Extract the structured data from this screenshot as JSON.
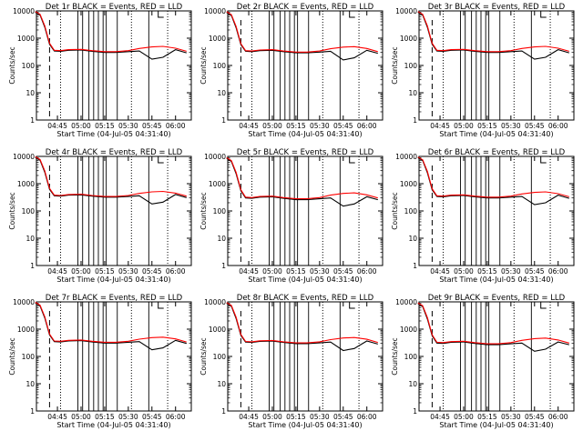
{
  "colors": {
    "background": "#ffffff",
    "events": "#000000",
    "lld": "#ff0000"
  },
  "chart_data": [
    {
      "type": "line",
      "title": "Det 1r BLACK = Events, RED = LLD",
      "xlabel": "Start Time (04-Jul-05 04:31:40)",
      "ylabel": "Counts/sec",
      "yscale": "log",
      "ylim": [
        1,
        10000
      ],
      "x_ticks": [
        "04:45",
        "05:00",
        "05:15",
        "05:30",
        "05:45",
        "06:00"
      ],
      "y_ticks": [
        "1",
        "10",
        "100",
        "1000",
        "10000"
      ],
      "x": [
        "04:31",
        "04:34",
        "04:37",
        "04:40",
        "04:43",
        "04:47",
        "04:52",
        "05:00",
        "05:07",
        "05:15",
        "05:22",
        "05:30",
        "05:37",
        "05:45",
        "05:52",
        "06:00",
        "06:07"
      ],
      "series": [
        {
          "name": "Events",
          "values": [
            9000,
            7000,
            2500,
            600,
            340,
            330,
            360,
            370,
            330,
            300,
            300,
            320,
            340,
            170,
            200,
            380,
            290
          ]
        },
        {
          "name": "LLD",
          "values": [
            9500,
            7500,
            2800,
            650,
            360,
            350,
            380,
            390,
            350,
            320,
            320,
            350,
            420,
            480,
            500,
            430,
            330
          ]
        }
      ]
    },
    {
      "type": "line",
      "title": "Det 2r BLACK = Events, RED = LLD",
      "xlabel": "Start Time (04-Jul-05 04:31:40)",
      "ylabel": "Counts/sec",
      "yscale": "log",
      "ylim": [
        1,
        10000
      ],
      "x_ticks": [
        "04:45",
        "05:00",
        "05:15",
        "05:30",
        "05:45",
        "06:00"
      ],
      "y_ticks": [
        "1",
        "10",
        "100",
        "1000",
        "10000"
      ],
      "x": [
        "04:31",
        "04:34",
        "04:37",
        "04:40",
        "04:43",
        "04:47",
        "04:52",
        "05:00",
        "05:07",
        "05:15",
        "05:22",
        "05:30",
        "05:37",
        "05:45",
        "05:52",
        "06:00",
        "06:07"
      ],
      "series": [
        {
          "name": "Events",
          "values": [
            8800,
            6800,
            2400,
            580,
            330,
            320,
            350,
            360,
            320,
            290,
            290,
            310,
            330,
            160,
            190,
            360,
            280
          ]
        },
        {
          "name": "LLD",
          "values": [
            9300,
            7300,
            2700,
            630,
            350,
            340,
            370,
            380,
            340,
            310,
            310,
            340,
            410,
            470,
            490,
            420,
            320
          ]
        }
      ]
    },
    {
      "type": "line",
      "title": "Det 3r BLACK = Events, RED = LLD",
      "xlabel": "Start Time (04-Jul-05 04:31:40)",
      "ylabel": "Counts/sec",
      "yscale": "log",
      "ylim": [
        1,
        10000
      ],
      "x_ticks": [
        "04:45",
        "05:00",
        "05:15",
        "05:30",
        "05:45",
        "06:00"
      ],
      "y_ticks": [
        "1",
        "10",
        "100",
        "1000",
        "10000"
      ],
      "x": [
        "04:31",
        "04:34",
        "04:37",
        "04:40",
        "04:43",
        "04:47",
        "04:52",
        "05:00",
        "05:07",
        "05:15",
        "05:22",
        "05:30",
        "05:37",
        "05:45",
        "05:52",
        "06:00",
        "06:07"
      ],
      "series": [
        {
          "name": "Events",
          "values": [
            9000,
            7000,
            2500,
            600,
            340,
            330,
            360,
            370,
            330,
            300,
            300,
            320,
            340,
            170,
            200,
            380,
            290
          ]
        },
        {
          "name": "LLD",
          "values": [
            9500,
            7500,
            2800,
            650,
            360,
            350,
            380,
            390,
            350,
            320,
            320,
            350,
            420,
            480,
            500,
            430,
            330
          ]
        }
      ]
    },
    {
      "type": "line",
      "title": "Det 4r BLACK = Events, RED = LLD",
      "xlabel": "Start Time (04-Jul-05 04:31:40)",
      "ylabel": "Counts/sec",
      "yscale": "log",
      "ylim": [
        1,
        10000
      ],
      "x_ticks": [
        "04:45",
        "05:00",
        "05:15",
        "05:30",
        "05:45",
        "06:00"
      ],
      "y_ticks": [
        "1",
        "10",
        "100",
        "1000",
        "10000"
      ],
      "x": [
        "04:31",
        "04:34",
        "04:37",
        "04:40",
        "04:43",
        "04:47",
        "04:52",
        "05:00",
        "05:07",
        "05:15",
        "05:22",
        "05:30",
        "05:37",
        "05:45",
        "05:52",
        "06:00",
        "06:07"
      ],
      "series": [
        {
          "name": "Events",
          "values": [
            9200,
            7200,
            2600,
            620,
            360,
            350,
            380,
            390,
            350,
            320,
            320,
            340,
            360,
            180,
            210,
            400,
            310
          ]
        },
        {
          "name": "LLD",
          "values": [
            9700,
            7700,
            2900,
            670,
            380,
            370,
            400,
            410,
            370,
            340,
            340,
            370,
            440,
            500,
            520,
            450,
            350
          ]
        }
      ]
    },
    {
      "type": "line",
      "title": "Det 5r BLACK = Events, RED = LLD",
      "xlabel": "Start Time (04-Jul-05 04:31:40)",
      "ylabel": "Counts/sec",
      "yscale": "log",
      "ylim": [
        1,
        10000
      ],
      "x_ticks": [
        "04:45",
        "05:00",
        "05:15",
        "05:30",
        "05:45",
        "06:00"
      ],
      "y_ticks": [
        "1",
        "10",
        "100",
        "1000",
        "10000"
      ],
      "x": [
        "04:31",
        "04:34",
        "04:37",
        "04:40",
        "04:43",
        "04:47",
        "04:52",
        "05:00",
        "05:07",
        "05:15",
        "05:22",
        "05:30",
        "05:37",
        "05:45",
        "05:52",
        "06:00",
        "06:07"
      ],
      "series": [
        {
          "name": "Events",
          "values": [
            8500,
            6500,
            2300,
            550,
            300,
            290,
            320,
            330,
            290,
            260,
            260,
            280,
            300,
            150,
            180,
            330,
            260
          ]
        },
        {
          "name": "LLD",
          "values": [
            9000,
            7000,
            2600,
            600,
            320,
            310,
            340,
            350,
            310,
            280,
            280,
            310,
            380,
            440,
            460,
            390,
            300
          ]
        }
      ]
    },
    {
      "type": "line",
      "title": "Det 6r BLACK = Events, RED = LLD",
      "xlabel": "Start Time (04-Jul-05 04:31:40)",
      "ylabel": "Counts/sec",
      "yscale": "log",
      "ylim": [
        1,
        10000
      ],
      "x_ticks": [
        "04:45",
        "05:00",
        "05:15",
        "05:30",
        "05:45",
        "06:00"
      ],
      "y_ticks": [
        "1",
        "10",
        "100",
        "1000",
        "10000"
      ],
      "x": [
        "04:31",
        "04:34",
        "04:37",
        "04:40",
        "04:43",
        "04:47",
        "04:52",
        "05:00",
        "05:07",
        "05:15",
        "05:22",
        "05:30",
        "05:37",
        "05:45",
        "05:52",
        "06:00",
        "06:07"
      ],
      "series": [
        {
          "name": "Events",
          "values": [
            9000,
            7000,
            2500,
            600,
            340,
            330,
            360,
            370,
            330,
            300,
            300,
            320,
            340,
            170,
            200,
            380,
            290
          ]
        },
        {
          "name": "LLD",
          "values": [
            9500,
            7500,
            2800,
            650,
            360,
            350,
            380,
            390,
            350,
            320,
            320,
            350,
            420,
            480,
            500,
            430,
            330
          ]
        }
      ]
    },
    {
      "type": "line",
      "title": "Det 7r BLACK = Events, RED = LLD",
      "xlabel": "Start Time (04-Jul-05 04:31:40)",
      "ylabel": "Counts/sec",
      "yscale": "log",
      "ylim": [
        1,
        10000
      ],
      "x_ticks": [
        "04:45",
        "05:00",
        "05:15",
        "05:30",
        "05:45",
        "06:00"
      ],
      "y_ticks": [
        "1",
        "10",
        "100",
        "1000",
        "10000"
      ],
      "x": [
        "04:31",
        "04:34",
        "04:37",
        "04:40",
        "04:43",
        "04:47",
        "04:52",
        "05:00",
        "05:07",
        "05:15",
        "05:22",
        "05:30",
        "05:37",
        "05:45",
        "05:52",
        "06:00",
        "06:07"
      ],
      "series": [
        {
          "name": "Events",
          "values": [
            9100,
            7100,
            2550,
            610,
            350,
            340,
            370,
            380,
            340,
            310,
            310,
            330,
            350,
            175,
            205,
            390,
            300
          ]
        },
        {
          "name": "LLD",
          "values": [
            9600,
            7600,
            2850,
            660,
            370,
            360,
            390,
            400,
            360,
            330,
            330,
            360,
            430,
            490,
            510,
            440,
            340
          ]
        }
      ]
    },
    {
      "type": "line",
      "title": "Det 8r BLACK = Events, RED = LLD",
      "xlabel": "Start Time (04-Jul-05 04:31:40)",
      "ylabel": "Counts/sec",
      "yscale": "log",
      "ylim": [
        1,
        10000
      ],
      "x_ticks": [
        "04:45",
        "05:00",
        "05:15",
        "05:30",
        "05:45",
        "06:00"
      ],
      "y_ticks": [
        "1",
        "10",
        "100",
        "1000",
        "10000"
      ],
      "x": [
        "04:31",
        "04:34",
        "04:37",
        "04:40",
        "04:43",
        "04:47",
        "04:52",
        "05:00",
        "05:07",
        "05:15",
        "05:22",
        "05:30",
        "05:37",
        "05:45",
        "05:52",
        "06:00",
        "06:07"
      ],
      "series": [
        {
          "name": "Events",
          "values": [
            8900,
            6900,
            2450,
            590,
            335,
            325,
            355,
            365,
            325,
            295,
            295,
            315,
            335,
            165,
            195,
            370,
            285
          ]
        },
        {
          "name": "LLD",
          "values": [
            9400,
            7400,
            2750,
            640,
            355,
            345,
            375,
            385,
            345,
            315,
            315,
            345,
            415,
            475,
            495,
            425,
            325
          ]
        }
      ]
    },
    {
      "type": "line",
      "title": "Det 9r BLACK = Events, RED = LLD",
      "xlabel": "Start Time (04-Jul-05 04:31:40)",
      "ylabel": "Counts/sec",
      "yscale": "log",
      "ylim": [
        1,
        10000
      ],
      "x_ticks": [
        "04:45",
        "05:00",
        "05:15",
        "05:30",
        "05:45",
        "06:00"
      ],
      "y_ticks": [
        "1",
        "10",
        "100",
        "1000",
        "10000"
      ],
      "x": [
        "04:31",
        "04:34",
        "04:37",
        "04:40",
        "04:43",
        "04:47",
        "04:52",
        "05:00",
        "05:07",
        "05:15",
        "05:22",
        "05:30",
        "05:37",
        "05:45",
        "05:52",
        "06:00",
        "06:07"
      ],
      "series": [
        {
          "name": "Events",
          "values": [
            8700,
            6700,
            2350,
            570,
            310,
            300,
            330,
            340,
            300,
            270,
            270,
            290,
            310,
            155,
            185,
            340,
            270
          ]
        },
        {
          "name": "LLD",
          "values": [
            9200,
            7200,
            2650,
            620,
            330,
            320,
            350,
            360,
            320,
            290,
            290,
            320,
            390,
            450,
            470,
            400,
            310
          ]
        }
      ]
    }
  ]
}
